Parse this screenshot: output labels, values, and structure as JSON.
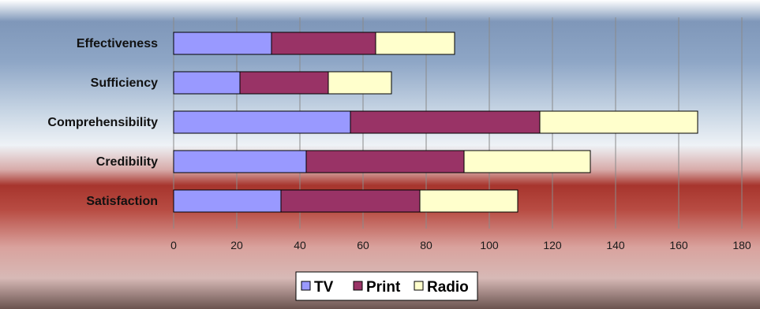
{
  "chart_data": {
    "type": "bar",
    "orientation": "horizontal",
    "stacked": true,
    "title": "",
    "xlabel": "",
    "ylabel": "",
    "categories": [
      "Effectiveness",
      "Sufficiency",
      "Comprehensibility",
      "Credibility",
      "Satisfaction"
    ],
    "series": [
      {
        "name": "TV",
        "values": [
          31,
          21,
          56,
          42,
          34
        ],
        "color": "#9999ff"
      },
      {
        "name": "Print",
        "values": [
          33,
          28,
          60,
          50,
          44
        ],
        "color": "#993366"
      },
      {
        "name": "Radio",
        "values": [
          25,
          20,
          50,
          40,
          31
        ],
        "color": "#ffffcc"
      }
    ],
    "xlim": [
      0,
      180
    ],
    "xticks": [
      0,
      20,
      40,
      60,
      80,
      100,
      120,
      140,
      160,
      180
    ],
    "grid": "vertical",
    "legend_position": "bottom"
  }
}
